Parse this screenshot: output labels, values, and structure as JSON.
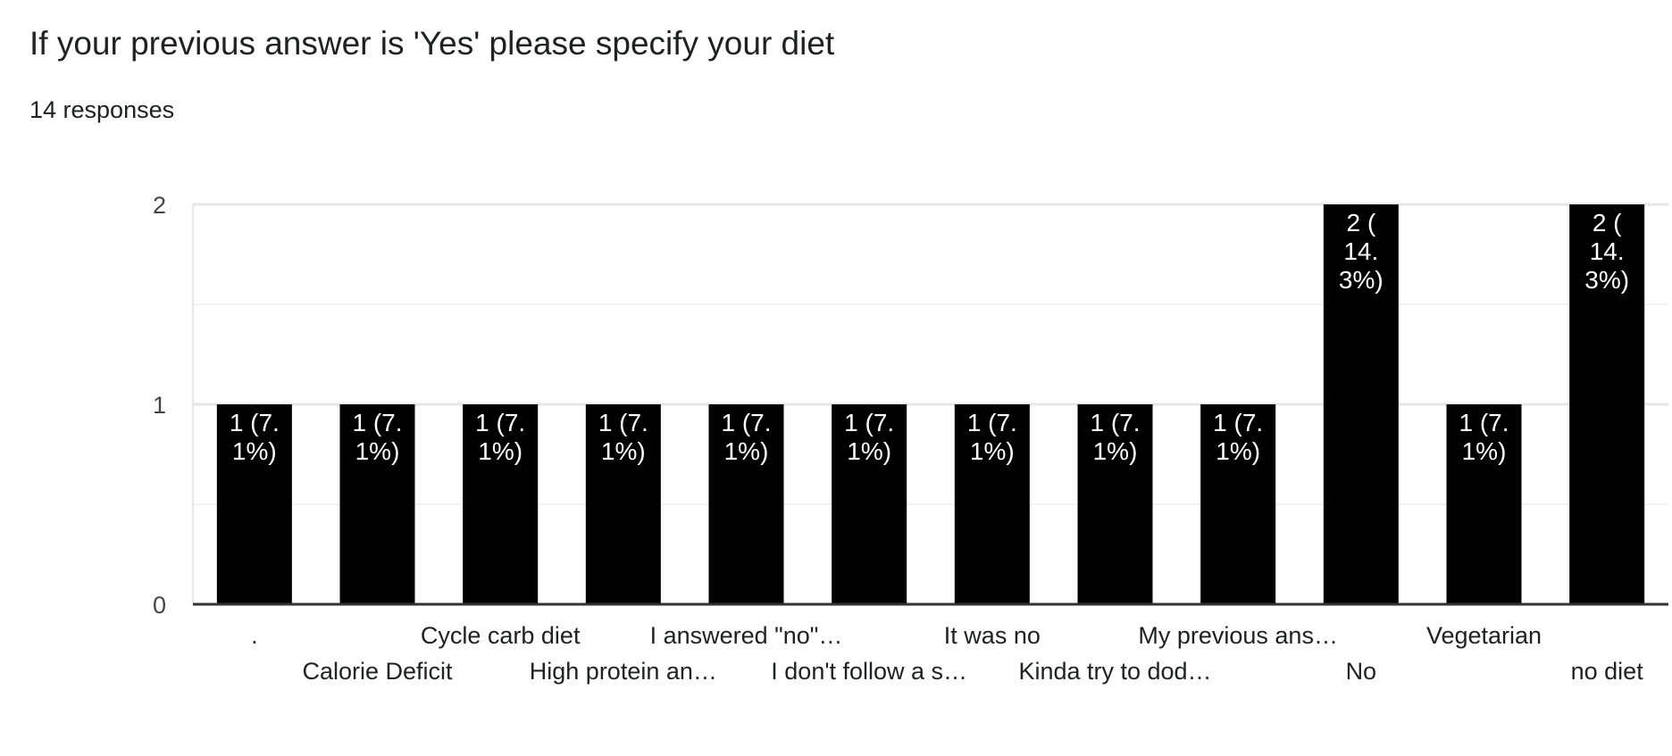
{
  "question": {
    "title": "If your previous answer is 'Yes' please specify your diet",
    "responses": "14 responses"
  },
  "colors": {
    "bar": "#000000",
    "bar_label": "#ffffff",
    "axis_text": "#444444",
    "grid_major": "#e6e6e6",
    "grid_minor": "#f2f2f2",
    "baseline": "#333333"
  },
  "chart_data": {
    "type": "bar",
    "title": "If your previous answer is 'Yes' please specify your diet",
    "ylim": [
      0,
      2
    ],
    "yticks": [
      "0",
      "1",
      "2"
    ],
    "grid": true,
    "legend": "none",
    "categories": [
      ".",
      "Calorie Deficit",
      "Cycle carb diet",
      "High protein an…",
      "I answered \"no\"…",
      "I don't follow a s…",
      "It was no",
      "Kinda try to dod…",
      "My previous ans…",
      "No",
      "Vegetarian",
      "no diet"
    ],
    "values": [
      1,
      1,
      1,
      1,
      1,
      1,
      1,
      1,
      1,
      2,
      1,
      2
    ],
    "data_labels": [
      [
        "1 (7.",
        "1%)"
      ],
      [
        "1 (7.",
        "1%)"
      ],
      [
        "1 (7.",
        "1%)"
      ],
      [
        "1 (7.",
        "1%)"
      ],
      [
        "1 (7.",
        "1%)"
      ],
      [
        "1 (7.",
        "1%)"
      ],
      [
        "1 (7.",
        "1%)"
      ],
      [
        "1 (7.",
        "1%)"
      ],
      [
        "1 (7.",
        "1%)"
      ],
      [
        "2 (",
        "14.",
        "3%)"
      ],
      [
        "1 (7.",
        "1%)"
      ],
      [
        "2 (",
        "14.",
        "3%)"
      ]
    ]
  }
}
